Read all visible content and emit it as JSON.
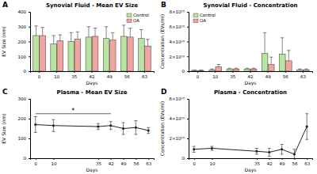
{
  "chart_data": [
    {
      "type": "bar",
      "panel": "A",
      "title": "Synovial Fluid - Mean EV Size",
      "x_label": "Days",
      "y_label": "EV Size (nm)",
      "categories": [
        "0",
        "10",
        "35",
        "42",
        "49",
        "56",
        "63"
      ],
      "series": [
        {
          "name": "Control",
          "color": "#b9e3a0",
          "values": [
            240,
            185,
            200,
            230,
            220,
            235,
            220
          ],
          "errors": [
            65,
            55,
            60,
            70,
            80,
            75,
            60
          ]
        },
        {
          "name": "OA",
          "color": "#f2a4a0",
          "values": [
            240,
            205,
            215,
            235,
            210,
            230,
            170
          ],
          "errors": [
            55,
            40,
            50,
            55,
            50,
            60,
            45
          ]
        }
      ],
      "ylim": [
        0,
        400
      ],
      "yticks": [
        0,
        100,
        200,
        300,
        400
      ],
      "grid": false,
      "legend": "top-right"
    },
    {
      "type": "bar",
      "panel": "B",
      "title": "Synovial Fluid - Concentration",
      "x_label": "Days",
      "y_label": "Concentration (EVs/ml)",
      "categories": [
        "0",
        "10",
        "35",
        "42",
        "49",
        "56",
        "63"
      ],
      "series": [
        {
          "name": "Control",
          "color": "#b9e3a0",
          "values": [
            1000000000,
            2000000000,
            3000000000,
            3000000000,
            24000000000,
            23000000000,
            2000000000
          ],
          "errors": [
            500000000,
            1000000000,
            1000000000,
            1000000000,
            28000000000,
            22000000000,
            1000000000
          ]
        },
        {
          "name": "OA",
          "color": "#f2a4a0",
          "values": [
            1000000000,
            6000000000,
            3000000000,
            3000000000,
            9000000000,
            14000000000,
            2000000000
          ],
          "errors": [
            500000000,
            3000000000,
            1000000000,
            1000000000,
            10000000000,
            14000000000,
            1000000000
          ]
        }
      ],
      "ylim": [
        0,
        80000000000
      ],
      "yticks": [
        0,
        {
          "value": 20000000000,
          "label": "2×10¹⁰"
        },
        {
          "value": 40000000000,
          "label": "4×10¹⁰"
        },
        {
          "value": 60000000000,
          "label": "6×10¹⁰"
        },
        {
          "value": 80000000000,
          "label": "8×10¹⁰"
        }
      ],
      "grid": false,
      "legend": "top-left"
    },
    {
      "type": "line",
      "panel": "C",
      "title": "Plasma - Mean EV Size",
      "x_label": "Days",
      "y_label": "EV Size (nm)",
      "x": [
        0,
        10,
        35,
        42,
        49,
        56,
        63
      ],
      "series": [
        {
          "color": "#222222",
          "marker": "circle",
          "values": [
            170,
            165,
            160,
            165,
            150,
            155,
            140
          ],
          "errors": [
            40,
            30,
            15,
            20,
            30,
            35,
            15
          ]
        }
      ],
      "xlim": [
        -3,
        66
      ],
      "xticks": [
        0,
        10,
        35,
        42,
        49,
        56,
        63
      ],
      "ylim": [
        0,
        300
      ],
      "yticks": [
        0,
        100,
        200,
        300
      ],
      "grid": false,
      "annotations": [
        {
          "text": "*",
          "x": [
            0,
            42
          ],
          "y": 225
        }
      ]
    },
    {
      "type": "line",
      "panel": "D",
      "title": "Plasma - Concentration",
      "x_label": "Days",
      "y_label": "Concentration (EVs/ml)",
      "x": [
        0,
        10,
        35,
        42,
        49,
        56,
        63
      ],
      "series": [
        {
          "color": "#222222",
          "marker": "circle",
          "values": [
            9000000000,
            10000000000,
            7000000000,
            6000000000,
            9000000000,
            4000000000,
            32000000000
          ],
          "errors": [
            3000000000,
            2000000000,
            3000000000,
            4000000000,
            5000000000,
            5000000000,
            13000000000
          ]
        }
      ],
      "xlim": [
        -3,
        66
      ],
      "xticks": [
        0,
        10,
        35,
        42,
        49,
        56,
        63
      ],
      "ylim": [
        0,
        60000000000
      ],
      "yticks": [
        0,
        {
          "value": 20000000000,
          "label": "2×10¹⁰"
        },
        {
          "value": 40000000000,
          "label": "4×10¹⁰"
        },
        {
          "value": 60000000000,
          "label": "6×10¹⁰"
        }
      ],
      "grid": false
    }
  ]
}
